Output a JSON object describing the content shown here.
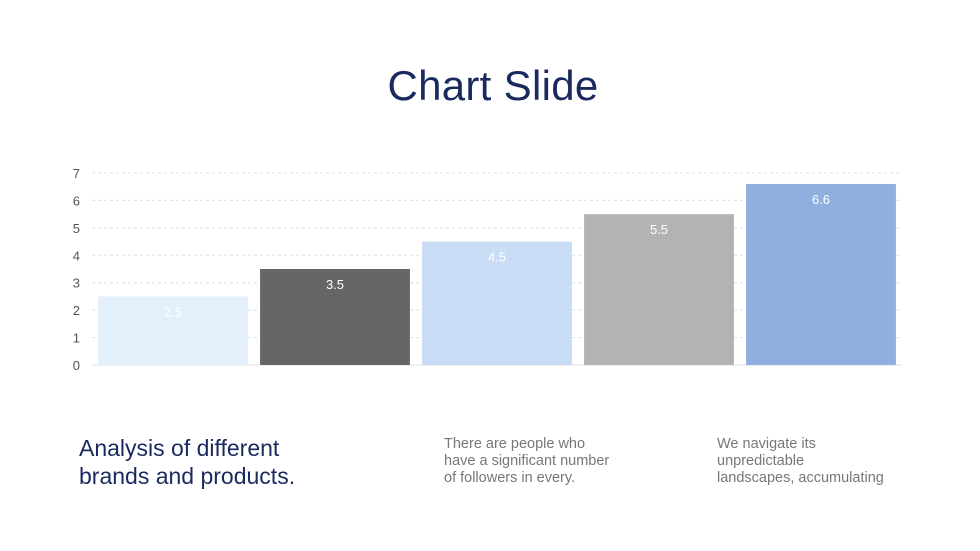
{
  "slide": {
    "title": "Chart Slide"
  },
  "chart_data": {
    "type": "bar",
    "categories": [
      "",
      "",
      "",
      "",
      ""
    ],
    "values": [
      2.5,
      3.5,
      4.5,
      5.5,
      6.6
    ],
    "value_labels": [
      "2.5",
      "3.5",
      "4.5",
      "5.5",
      "6.6"
    ],
    "y_ticks": [
      "0",
      "1",
      "2",
      "3",
      "4",
      "5",
      "6",
      "7"
    ],
    "ylim": [
      0,
      7
    ],
    "grid": true,
    "legend": "none",
    "colors": {
      "bars": [
        "#e3effb",
        "#666666",
        "#c9dcf5",
        "#b3b3b3",
        "#8fb0de"
      ],
      "labels": [
        "#ffffff",
        "#ffffff",
        "#ffffff",
        "#ffffff",
        "#ffffff"
      ],
      "grid": "#d6e4ee",
      "axis": "#e2e2e2"
    }
  },
  "analysis": {
    "line1": "Analysis of different",
    "line2": "brands and products."
  },
  "columns": [
    {
      "lines": [
        "There are people who",
        "have a significant number",
        "of followers in every."
      ]
    },
    {
      "lines": [
        "We navigate its",
        "unpredictable",
        "landscapes, accumulating"
      ]
    }
  ]
}
